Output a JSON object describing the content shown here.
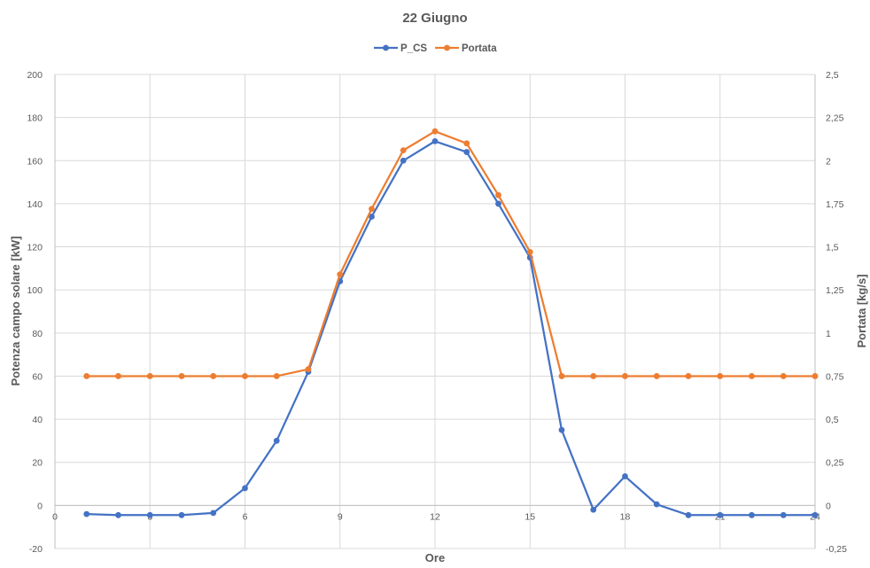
{
  "chart_data": {
    "type": "line",
    "title": "22 Giugno",
    "xlabel": "Ore",
    "ylabel_left": "Potenza campo solare [kW]",
    "ylabel_right": "Portata [kg/s]",
    "legend_position": "top-center",
    "grid": true,
    "x_range": [
      0,
      24
    ],
    "x_ticks": [
      "0",
      "3",
      "6",
      "9",
      "12",
      "15",
      "18",
      "21",
      "24"
    ],
    "y_left_range": [
      -20,
      200
    ],
    "y_left_ticks": [
      "-20",
      "0",
      "20",
      "40",
      "60",
      "80",
      "100",
      "120",
      "140",
      "160",
      "180",
      "200"
    ],
    "y_right_range": [
      -0.25,
      2.5
    ],
    "y_right_ticks": [
      "-0,25",
      "0",
      "0,25",
      "0,5",
      "0,75",
      "1",
      "1,25",
      "1,5",
      "1,75",
      "2",
      "2,25",
      "2,5"
    ],
    "x": [
      1,
      2,
      3,
      4,
      5,
      6,
      7,
      8,
      9,
      10,
      11,
      12,
      13,
      14,
      15,
      16,
      17,
      18,
      19,
      20,
      21,
      22,
      23,
      24
    ],
    "series": [
      {
        "name": "P_CS",
        "axis": "left",
        "color": "#4472C4",
        "values": [
          -4,
          -4.5,
          -4.5,
          -4.5,
          -3.5,
          8,
          30,
          62,
          104,
          134,
          160,
          169,
          164,
          140,
          115,
          35,
          -2,
          13.5,
          0.5,
          -4.5,
          -4.5,
          -4.5,
          -4.5,
          -4.5
        ]
      },
      {
        "name": "Portata",
        "axis": "right",
        "color": "#ED7D31",
        "values": [
          0.75,
          0.75,
          0.75,
          0.75,
          0.75,
          0.75,
          0.75,
          0.79,
          1.34,
          1.72,
          2.06,
          2.17,
          2.1,
          1.8,
          1.47,
          0.75,
          0.75,
          0.75,
          0.75,
          0.75,
          0.75,
          0.75,
          0.75,
          0.75
        ]
      }
    ]
  }
}
